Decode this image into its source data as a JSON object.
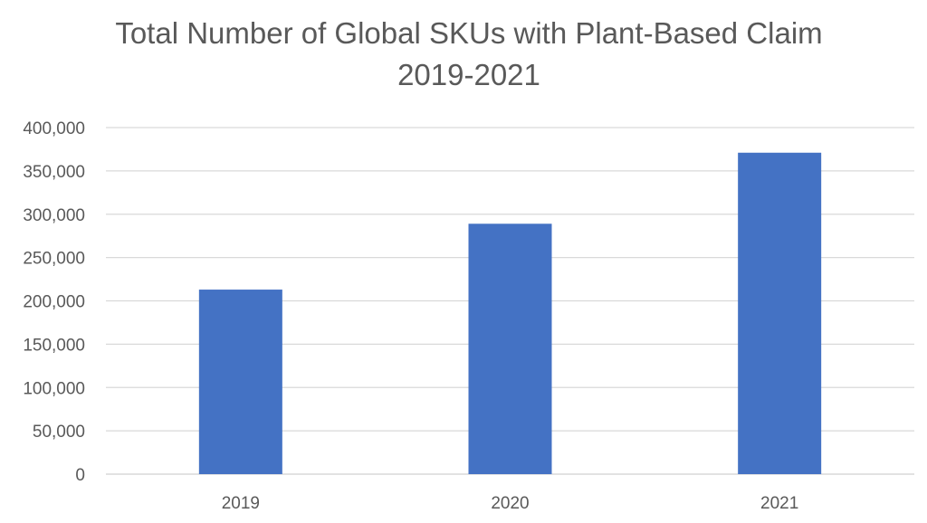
{
  "chart_data": {
    "type": "bar",
    "title": "Total Number of Global SKUs with Plant-Based Claim",
    "subtitle": "2019-2021",
    "categories": [
      "2019",
      "2020",
      "2021"
    ],
    "values": [
      213000,
      289000,
      371000
    ],
    "ylim": [
      0,
      400000
    ],
    "yticks": [
      0,
      50000,
      100000,
      150000,
      200000,
      250000,
      300000,
      350000,
      400000
    ],
    "ytick_labels": [
      "0",
      "50,000",
      "100,000",
      "150,000",
      "200,000",
      "250,000",
      "300,000",
      "350,000",
      "400,000"
    ],
    "grid": true,
    "legend": "none",
    "colors": {
      "bar": "#4472C4",
      "grid": "#D9D9D9",
      "text": "#595959"
    }
  }
}
